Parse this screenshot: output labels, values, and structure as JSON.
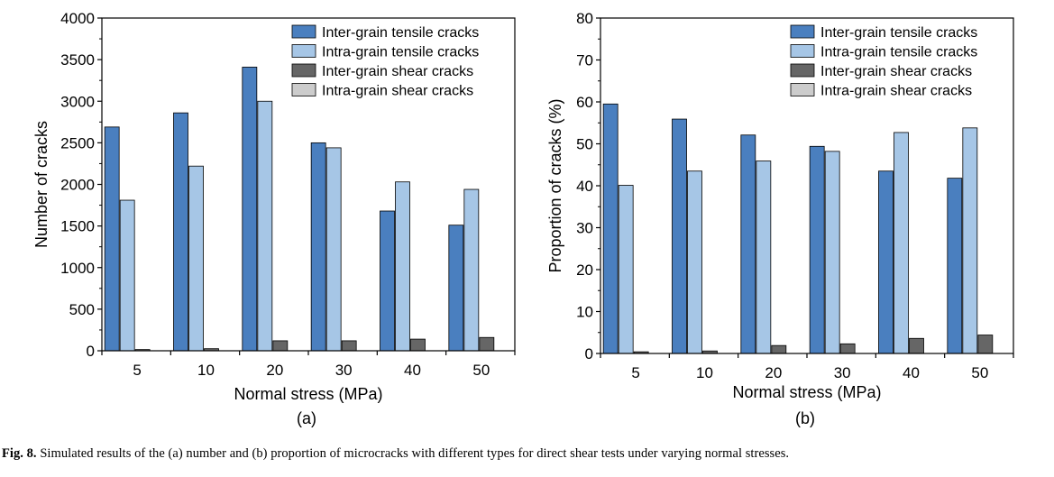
{
  "figure": {
    "caption_lead": "Fig. 8.",
    "caption_text": "Simulated results of the (a) number and (b) proportion of microcracks with different types for direct shear tests under varying normal stresses."
  },
  "chart_data": [
    {
      "type": "bar",
      "panel_label": "(a)",
      "xlabel": "Normal stress (MPa)",
      "ylabel": "Number of cracks",
      "categories": [
        "5",
        "10",
        "20",
        "30",
        "40",
        "50"
      ],
      "ylim": [
        0,
        4000
      ],
      "yticks": [
        0,
        500,
        1000,
        1500,
        2000,
        2500,
        3000,
        3500,
        4000
      ],
      "legend_position": "top-right",
      "grid": false,
      "series": [
        {
          "name": "Inter-grain tensile cracks",
          "color": "#4a7fbf",
          "values": [
            2690,
            2860,
            3410,
            2500,
            1680,
            1510
          ]
        },
        {
          "name": "Intra-grain tensile cracks",
          "color": "#a6c6e6",
          "values": [
            1810,
            2220,
            3000,
            2440,
            2030,
            1940
          ]
        },
        {
          "name": "Inter-grain shear cracks",
          "color": "#666666",
          "values": [
            15,
            25,
            120,
            120,
            140,
            160
          ]
        },
        {
          "name": "Intra-grain shear cracks",
          "color": "#cccccc",
          "values": [
            0,
            0,
            0,
            0,
            0,
            0
          ]
        }
      ]
    },
    {
      "type": "bar",
      "panel_label": "(b)",
      "xlabel": "Normal stress (MPa)",
      "ylabel": "Proportion of cracks (%)",
      "categories": [
        "5",
        "10",
        "20",
        "30",
        "40",
        "50"
      ],
      "ylim": [
        0,
        80
      ],
      "yticks": [
        0,
        10,
        20,
        30,
        40,
        50,
        60,
        70,
        80
      ],
      "legend_position": "top-right",
      "grid": false,
      "series": [
        {
          "name": "Inter-grain tensile cracks",
          "color": "#4a7fbf",
          "values": [
            59.5,
            55.9,
            52.1,
            49.4,
            43.5,
            41.8
          ]
        },
        {
          "name": "Intra-grain tensile cracks",
          "color": "#a6c6e6",
          "values": [
            40.1,
            43.5,
            45.9,
            48.2,
            52.7,
            53.8
          ]
        },
        {
          "name": "Inter-grain shear cracks",
          "color": "#666666",
          "values": [
            0.4,
            0.6,
            1.9,
            2.3,
            3.6,
            4.4
          ]
        },
        {
          "name": "Intra-grain shear cracks",
          "color": "#cccccc",
          "values": [
            0,
            0,
            0,
            0,
            0,
            0
          ]
        }
      ]
    }
  ]
}
